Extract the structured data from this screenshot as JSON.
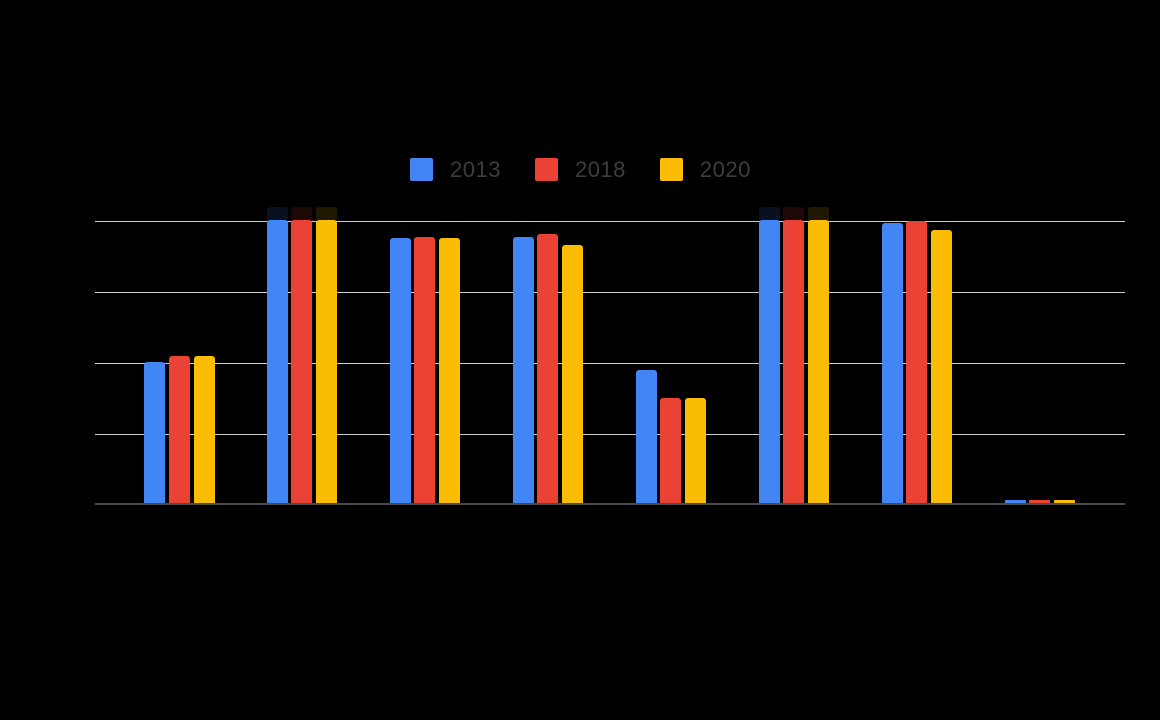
{
  "legend": {
    "items": [
      {
        "label": "2013",
        "color": "#4285F4"
      },
      {
        "label": "2018",
        "color": "#EA4335"
      },
      {
        "label": "2020",
        "color": "#FBBC04"
      }
    ]
  },
  "chart_data": {
    "type": "bar",
    "title": "",
    "background": "#000000",
    "legend_position": "top",
    "categories": [
      "",
      "",
      "",
      "",
      "",
      "",
      "",
      ""
    ],
    "x_tick_labels_visible": false,
    "y_tick_labels_visible": false,
    "series": [
      {
        "name": "2013",
        "color": "#4285F4",
        "values": [
          50,
          100,
          93.5,
          94,
          47,
          100,
          99,
          1
        ]
      },
      {
        "name": "2018",
        "color": "#EA4335",
        "values": [
          52,
          100,
          94,
          95,
          37,
          100,
          99.5,
          1
        ]
      },
      {
        "name": "2020",
        "color": "#FBBC04",
        "values": [
          52,
          100,
          93.5,
          91,
          37,
          100,
          96.5,
          1
        ]
      }
    ],
    "ylim": [
      0,
      100
    ],
    "gridline_values": [
      0,
      25,
      50,
      75,
      100
    ],
    "gridline_color": "#cccccc",
    "axis_line_color": "#4a4a4a",
    "overflow_glow_groups": [
      1,
      5
    ]
  }
}
